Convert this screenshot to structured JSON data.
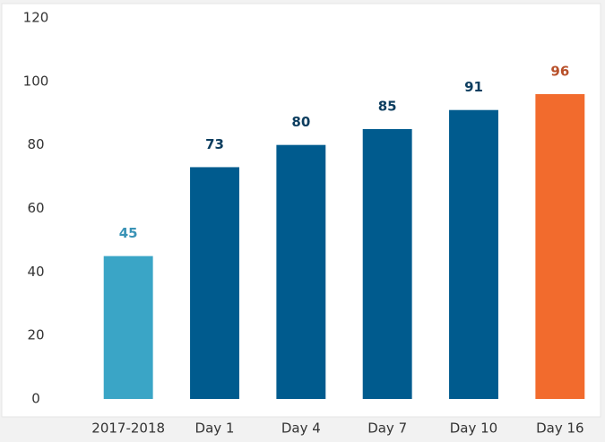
{
  "chart_data": {
    "type": "bar",
    "categories": [
      "2017-2018",
      "Day 1",
      "Day 4",
      "Day 7",
      "Day 10",
      "Day 16"
    ],
    "values": [
      45,
      73,
      80,
      85,
      91,
      96
    ],
    "colors": [
      "#3aa5c6",
      "#005b8e",
      "#005b8e",
      "#005b8e",
      "#005b8e",
      "#f26b2d"
    ],
    "label_colors": [
      "#3a93b6",
      "#0c3d5f",
      "#0c3d5f",
      "#0c3d5f",
      "#0c3d5f",
      "#b8502a"
    ],
    "ylim": [
      0,
      120
    ],
    "yticks": [
      0,
      20,
      40,
      60,
      80,
      100,
      120
    ],
    "grid": false
  }
}
